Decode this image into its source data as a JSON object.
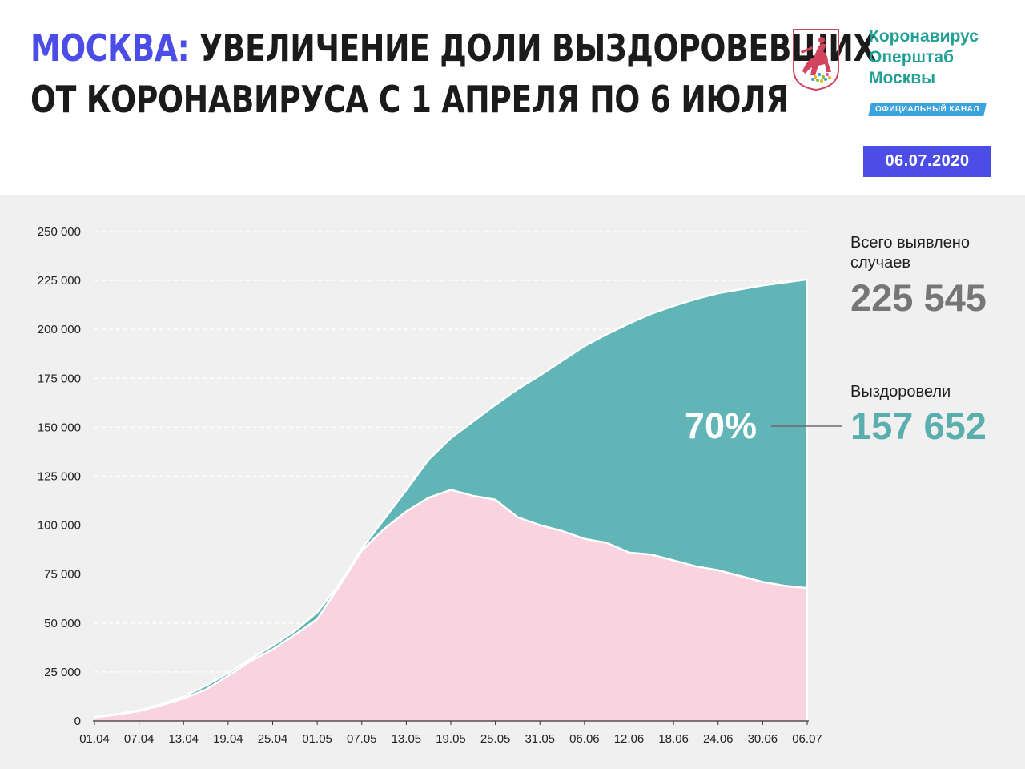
{
  "header": {
    "title_accent": "МОСКВА:",
    "title_line1": "УВЕЛИЧЕНИЕ ДОЛИ ВЫЗДОРОВЕВШИХ",
    "title_line2": "ОТ КОРОНАВИРУСА С 1 АПРЕЛЯ ПО 6 ИЮЛЯ",
    "brand_line1": "Коронавирус",
    "brand_line2": "Оперштаб",
    "brand_line3": "Москвы",
    "badge": "ОФИЦИАЛЬНЫЙ КАНАЛ",
    "date": "06.07.2020"
  },
  "colors": {
    "accent": "#4b4de6",
    "recovered": "#62b5b7",
    "active": "#f9d3df",
    "total_value": "#767676",
    "recovered_value": "#5aafae",
    "brand": "#22a096"
  },
  "stats": {
    "total_label_line1": "Всего выявлено",
    "total_label_line2": "случаев",
    "total_value": "225 545",
    "recovered_label": "Выздоровели",
    "recovered_value": "157 652",
    "percent": "70%"
  },
  "chart_data": {
    "type": "area",
    "title": "",
    "xlabel": "",
    "ylabel": "",
    "ylim": [
      0,
      250000
    ],
    "yticks": [
      "0",
      "25 000",
      "50 000",
      "75 000",
      "100 000",
      "125 000",
      "150 000",
      "175 000",
      "200 000",
      "225 000",
      "250 000"
    ],
    "x_tick_labels": [
      "01.04",
      "07.04",
      "13.04",
      "19.04",
      "25.04",
      "01.05",
      "07.05",
      "13.05",
      "19.05",
      "25.05",
      "31.05",
      "06.06",
      "12.06",
      "18.06",
      "24.06",
      "30.06",
      "06.07"
    ],
    "grid": true,
    "x": [
      "01.04",
      "04.04",
      "07.04",
      "10.04",
      "13.04",
      "16.04",
      "19.04",
      "22.04",
      "25.04",
      "28.04",
      "01.05",
      "04.05",
      "07.05",
      "10.05",
      "13.05",
      "16.05",
      "19.05",
      "22.05",
      "25.05",
      "28.05",
      "31.05",
      "03.06",
      "06.06",
      "09.06",
      "12.06",
      "15.06",
      "18.06",
      "21.06",
      "24.06",
      "27.06",
      "30.06",
      "03.07",
      "06.07"
    ],
    "series": [
      {
        "values": [
          2000,
          3500,
          5500,
          8500,
          12500,
          18000,
          24500,
          31500,
          38500,
          46000,
          55500,
          70000,
          88000,
          103000,
          118000,
          133500,
          144500,
          153000,
          161500,
          169500,
          176500,
          184000,
          191500,
          197500,
          203000,
          208000,
          212000,
          215500,
          218500,
          220500,
          222500,
          224000,
          225545
        ]
      },
      {
        "values": [
          1800,
          3200,
          5000,
          8000,
          11500,
          16000,
          23000,
          30500,
          36500,
          44000,
          52000,
          69000,
          87000,
          98000,
          107000,
          114000,
          118000,
          115000,
          113000,
          104000,
          100000,
          97000,
          93000,
          91000,
          86000,
          85000,
          82000,
          79000,
          77000,
          74000,
          71000,
          69000,
          67893
        ]
      }
    ],
    "annotations": [
      {
        "text": "70%",
        "value": "157 652",
        "label": "Выздоровели"
      },
      {
        "text": "225 545",
        "label": "Всего выявлено случаев"
      }
    ]
  }
}
